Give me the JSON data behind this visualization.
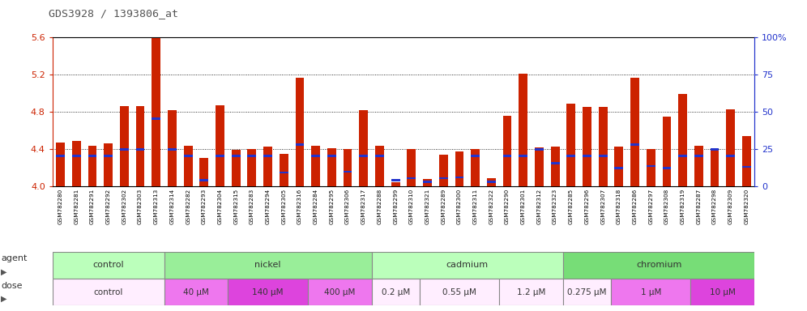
{
  "title": "GDS3928 / 1393806_at",
  "samples": [
    "GSM782280",
    "GSM782281",
    "GSM782291",
    "GSM782292",
    "GSM782302",
    "GSM782303",
    "GSM782313",
    "GSM782314",
    "GSM782282",
    "GSM782293",
    "GSM782304",
    "GSM782315",
    "GSM782283",
    "GSM782294",
    "GSM782305",
    "GSM782316",
    "GSM782284",
    "GSM782295",
    "GSM782306",
    "GSM782317",
    "GSM782288",
    "GSM782299",
    "GSM782310",
    "GSM782321",
    "GSM782289",
    "GSM782300",
    "GSM782311",
    "GSM782322",
    "GSM782290",
    "GSM782301",
    "GSM782312",
    "GSM782323",
    "GSM782285",
    "GSM782296",
    "GSM782307",
    "GSM782318",
    "GSM782286",
    "GSM782297",
    "GSM782308",
    "GSM782319",
    "GSM782287",
    "GSM782298",
    "GSM782309",
    "GSM782320"
  ],
  "red_values": [
    4.47,
    4.49,
    4.44,
    4.46,
    4.86,
    4.86,
    5.59,
    4.82,
    4.44,
    4.31,
    4.87,
    4.39,
    4.4,
    4.43,
    4.35,
    5.17,
    4.44,
    4.41,
    4.4,
    4.82,
    4.44,
    4.05,
    4.4,
    4.08,
    4.34,
    4.38,
    4.4,
    4.09,
    4.76,
    5.21,
    4.42,
    4.43,
    4.89,
    4.85,
    4.85,
    4.43,
    5.17,
    4.4,
    4.75,
    4.99,
    4.44,
    4.39,
    4.83,
    4.54
  ],
  "blue_values": [
    4.33,
    4.33,
    4.33,
    4.33,
    4.4,
    4.4,
    4.73,
    4.4,
    4.33,
    4.07,
    4.33,
    4.33,
    4.33,
    4.33,
    4.15,
    4.45,
    4.33,
    4.33,
    4.16,
    4.33,
    4.33,
    4.07,
    4.09,
    4.05,
    4.09,
    4.1,
    4.33,
    4.05,
    4.33,
    4.33,
    4.4,
    4.25,
    4.33,
    4.33,
    4.33,
    4.2,
    4.45,
    4.22,
    4.2,
    4.33,
    4.33,
    4.4,
    4.33,
    4.21
  ],
  "ylim_left": [
    4.0,
    5.6
  ],
  "ylim_right": [
    0,
    100
  ],
  "yticks_left": [
    4.0,
    4.4,
    4.8,
    5.2,
    5.6
  ],
  "yticks_right": [
    0,
    25,
    50,
    75,
    100
  ],
  "bar_color_red": "#CC2200",
  "bar_color_blue": "#2233CC",
  "agent_groups": [
    {
      "label": "control",
      "start": 0,
      "end": 7,
      "color": "#bbffbb"
    },
    {
      "label": "nickel",
      "start": 7,
      "end": 20,
      "color": "#99ee99"
    },
    {
      "label": "cadmium",
      "start": 20,
      "end": 32,
      "color": "#bbffbb"
    },
    {
      "label": "chromium",
      "start": 32,
      "end": 44,
      "color": "#77dd77"
    }
  ],
  "dose_groups": [
    {
      "label": "control",
      "start": 0,
      "end": 7,
      "color": "#ffeeFF"
    },
    {
      "label": "40 μM",
      "start": 7,
      "end": 11,
      "color": "#ee77ee"
    },
    {
      "label": "140 μM",
      "start": 11,
      "end": 16,
      "color": "#dd44dd"
    },
    {
      "label": "400 μM",
      "start": 16,
      "end": 20,
      "color": "#ee77ee"
    },
    {
      "label": "0.2 μM",
      "start": 20,
      "end": 23,
      "color": "#ffeeFF"
    },
    {
      "label": "0.55 μM",
      "start": 23,
      "end": 28,
      "color": "#ffeeFF"
    },
    {
      "label": "1.2 μM",
      "start": 28,
      "end": 32,
      "color": "#ffeeFF"
    },
    {
      "label": "0.275 μM",
      "start": 32,
      "end": 35,
      "color": "#ffeeFF"
    },
    {
      "label": "1 μM",
      "start": 35,
      "end": 40,
      "color": "#ee77ee"
    },
    {
      "label": "10 μM",
      "start": 40,
      "end": 44,
      "color": "#dd44dd"
    }
  ],
  "title_color": "#555555",
  "left_axis_color": "#CC2200",
  "right_axis_color": "#2233CC",
  "grid_color": "#000000",
  "xtick_bg": "#dddddd"
}
